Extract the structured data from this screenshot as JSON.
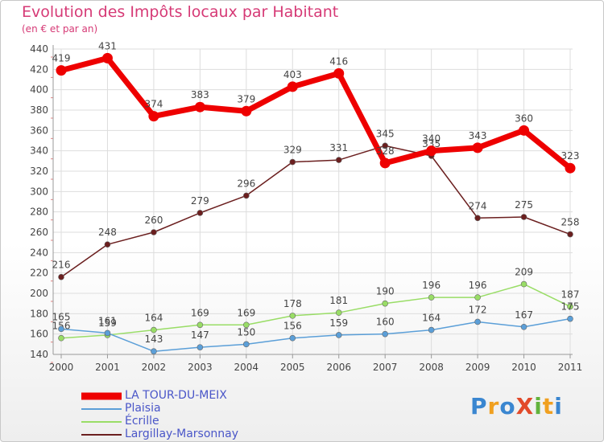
{
  "title": "Evolution des Impôts locaux par Habitant",
  "subtitle": "(en € et par an)",
  "logo": "ProXiti",
  "colors": {
    "title": "#d63a76",
    "legend_text": "#4a56c8",
    "axis": "#999999",
    "grid": "#dddddd"
  },
  "chart_data": {
    "type": "line",
    "x": [
      "2000",
      "2001",
      "2002",
      "2003",
      "2004",
      "2005",
      "2006",
      "2007",
      "2008",
      "2009",
      "2010",
      "2011"
    ],
    "ylim": [
      140,
      440
    ],
    "yticks": [
      140,
      160,
      180,
      200,
      220,
      240,
      260,
      280,
      300,
      320,
      340,
      360,
      380,
      400,
      420,
      440
    ],
    "grid": true,
    "legend_position": "bottom-left",
    "series": [
      {
        "name": "LA TOUR-DU-MEIX",
        "color": "#ee0000",
        "values": [
          419,
          431,
          374,
          383,
          379,
          403,
          416,
          328,
          340,
          343,
          360,
          323
        ]
      },
      {
        "name": "Plaisia",
        "color": "#5b9fd8",
        "values": [
          165,
          161,
          143,
          147,
          150,
          156,
          159,
          160,
          164,
          172,
          167,
          175
        ]
      },
      {
        "name": "Écrille",
        "color": "#99dd66",
        "values": [
          156,
          159,
          164,
          169,
          169,
          178,
          181,
          190,
          196,
          196,
          209,
          187
        ]
      },
      {
        "name": "Largillay-Marsonnay",
        "color": "#6b1f1f",
        "values": [
          216,
          248,
          260,
          279,
          296,
          329,
          331,
          345,
          335,
          274,
          275,
          258
        ]
      }
    ]
  }
}
